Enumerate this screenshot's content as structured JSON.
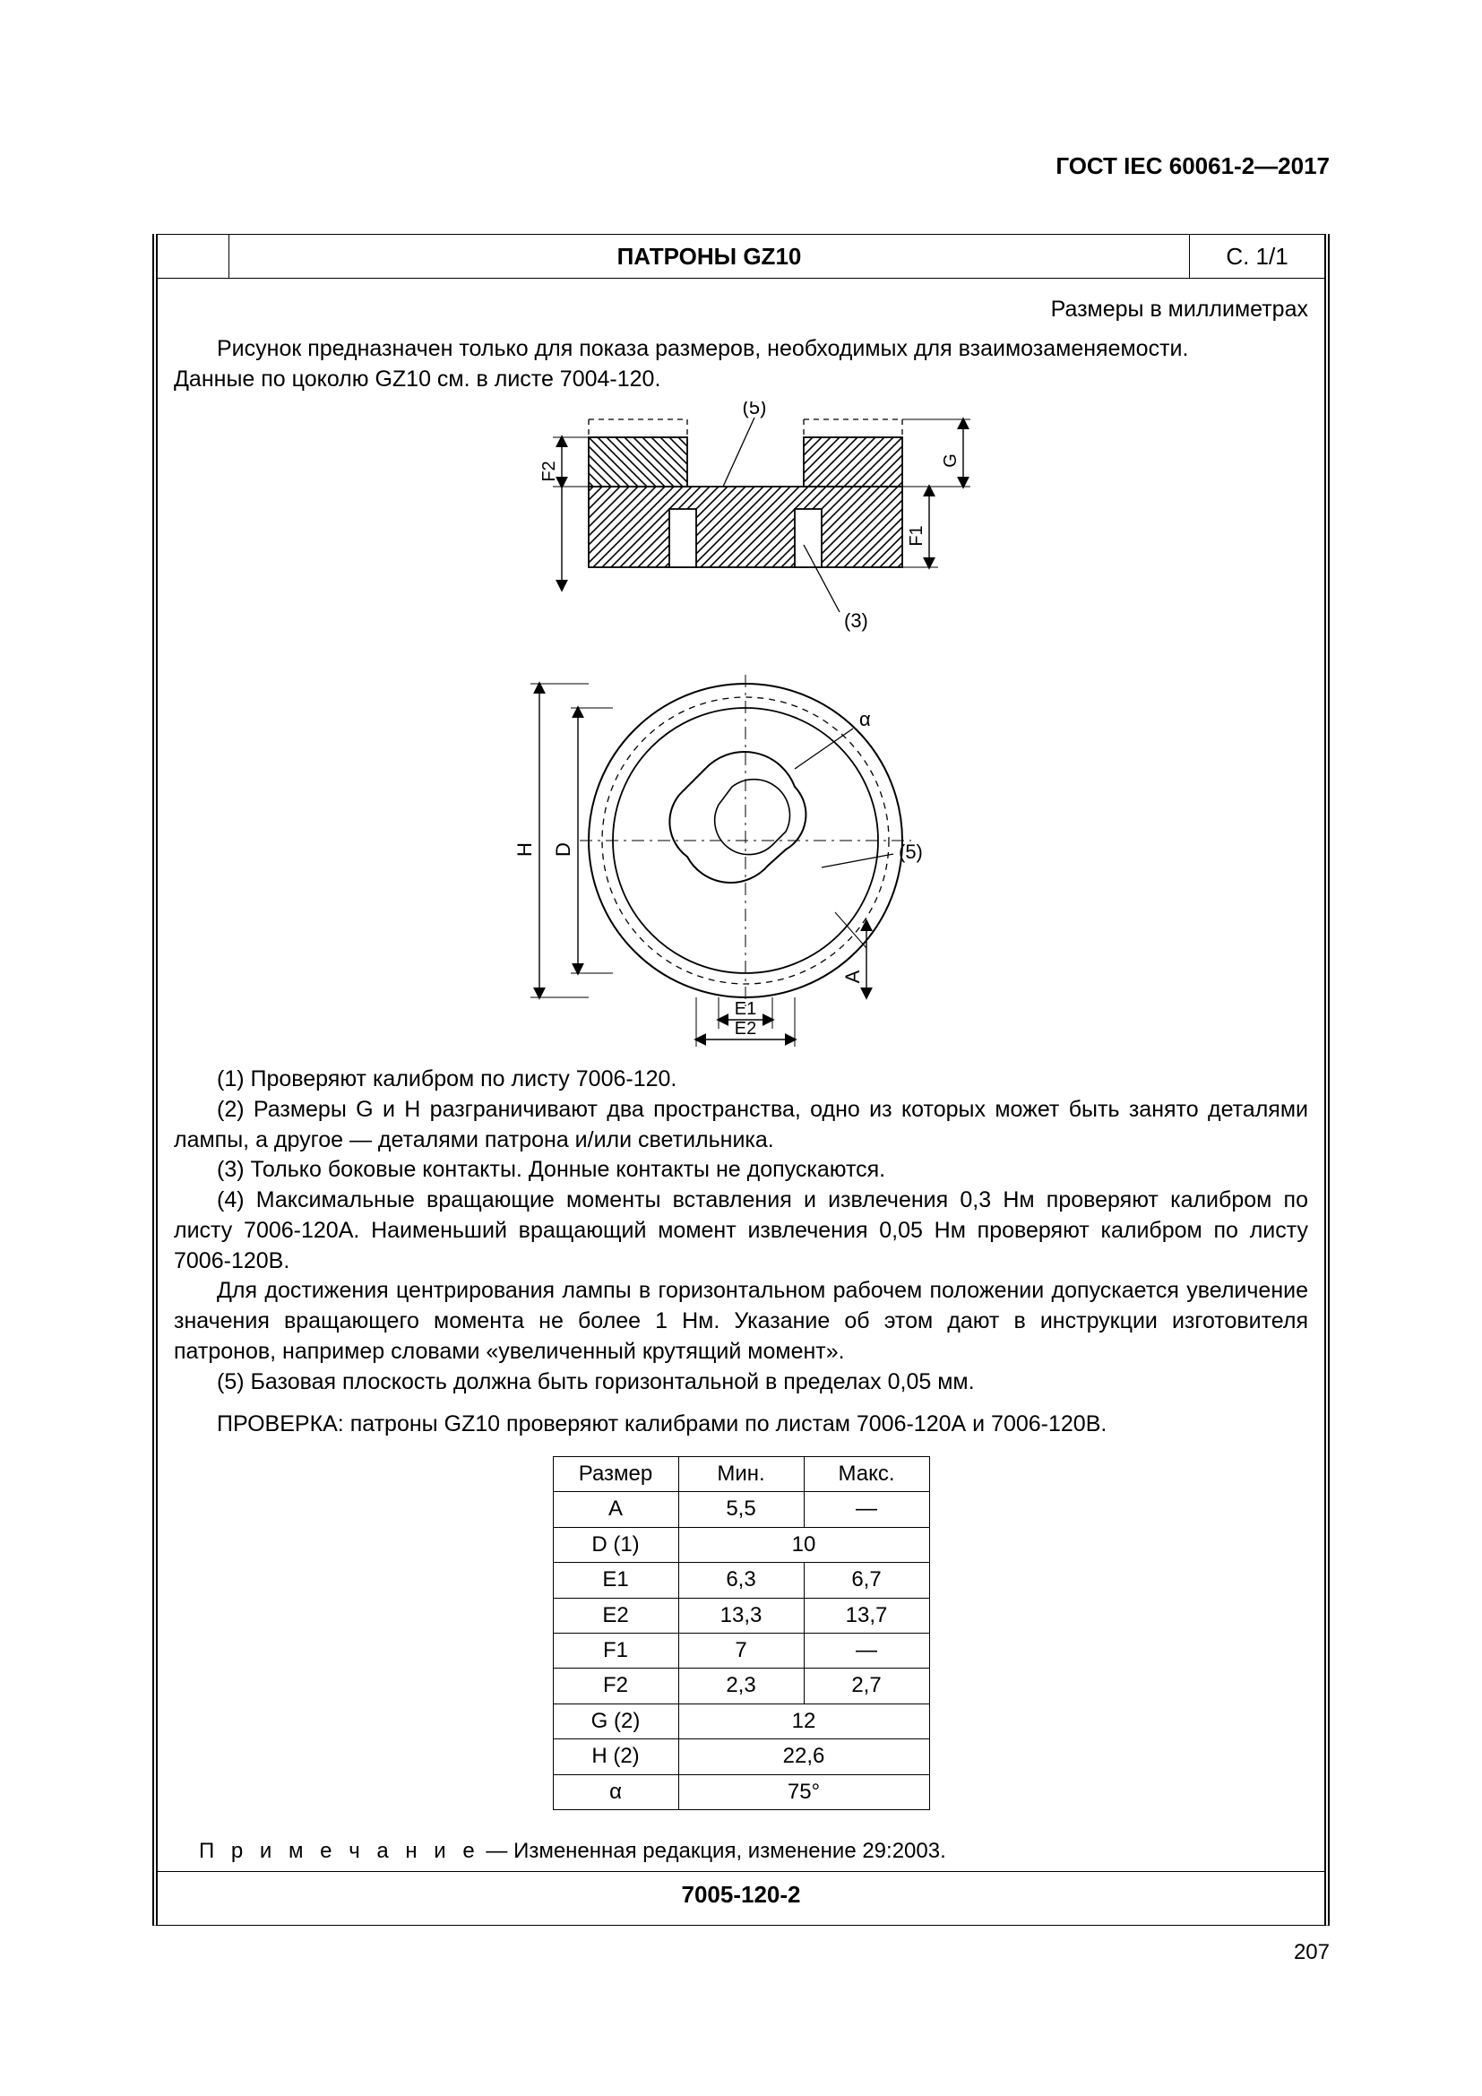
{
  "header": {
    "standard": "ГОСТ IEC 60061-2—2017"
  },
  "titlebar": {
    "title": "ПАТРОНЫ GZ10",
    "pageref": "С. 1/1"
  },
  "units_label": "Размеры в миллиметрах",
  "intro": {
    "line1": "Рисунок предназначен только для показа размеров, необходимых для взаимозаменяемости.",
    "line2": "Данные по цоколю GZ10 см. в листе 7004-120."
  },
  "diagram_labels": {
    "top_ref5": "(5)",
    "side_ref3": "(3)",
    "side_ref5": "(5)",
    "F2": "F2",
    "F1": "F1",
    "G": "G",
    "H": "H",
    "D": "D",
    "A": "A",
    "alpha": "α",
    "E1": "E1",
    "E2": "E2"
  },
  "notes": {
    "n1": "(1) Проверяют калибром по листу 7006-120.",
    "n2": "(2) Размеры G и H разграничивают два пространства, одно из которых может быть занято деталями лампы, а другое — деталями патрона и/или светильника.",
    "n3": "(3) Только боковые контакты. Донные контакты не допускаются.",
    "n4": "(4) Максимальные вращающие моменты вставления и извлечения 0,3 Нм проверяют калибром по листу 7006-120А. Наименьший вращающий момент извлечения 0,05 Нм проверяют калибром по листу 7006-120В.",
    "n4b": "Для достижения центрирования лампы в горизонтальном рабочем положении допускается увеличение значения вращающего момента не более 1 Нм. Указание об этом дают в инструкции изготовителя патронов, например словами «увеличенный крутящий момент».",
    "n5": "(5) Базовая плоскость должна быть горизонтальной в пределах 0,05 мм."
  },
  "check_line": "ПРОВЕРКА: патроны GZ10 проверяют калибрами по листам 7006-120А и 7006-120В.",
  "table": {
    "headers": {
      "dim": "Размер",
      "min": "Мин.",
      "max": "Макс."
    },
    "rows": [
      {
        "dim": "A",
        "min": "5,5",
        "max": "—",
        "span": false
      },
      {
        "dim": "D (1)",
        "value": "10",
        "span": true
      },
      {
        "dim": "E1",
        "min": "6,3",
        "max": "6,7",
        "span": false
      },
      {
        "dim": "E2",
        "min": "13,3",
        "max": "13,7",
        "span": false
      },
      {
        "dim": "F1",
        "min": "7",
        "max": "—",
        "span": false
      },
      {
        "dim": "F2",
        "min": "2,3",
        "max": "2,7",
        "span": false
      },
      {
        "dim": "G (2)",
        "value": "12",
        "span": true
      },
      {
        "dim": "H (2)",
        "value": "22,6",
        "span": true
      },
      {
        "dim": "α",
        "value": "75°",
        "span": true
      }
    ]
  },
  "footnote": {
    "label": "П р и м е ч а н и е",
    "text": " — Измененная редакция, изменение 29:2003."
  },
  "bottom_code": "7005-120-2",
  "page_number": "207",
  "style": {
    "colors": {
      "text": "#000000",
      "bg": "#ffffff",
      "rule": "#000000",
      "hatch": "#000000"
    },
    "font_sizes": {
      "body": 25,
      "header": 26,
      "table": 24
    }
  }
}
